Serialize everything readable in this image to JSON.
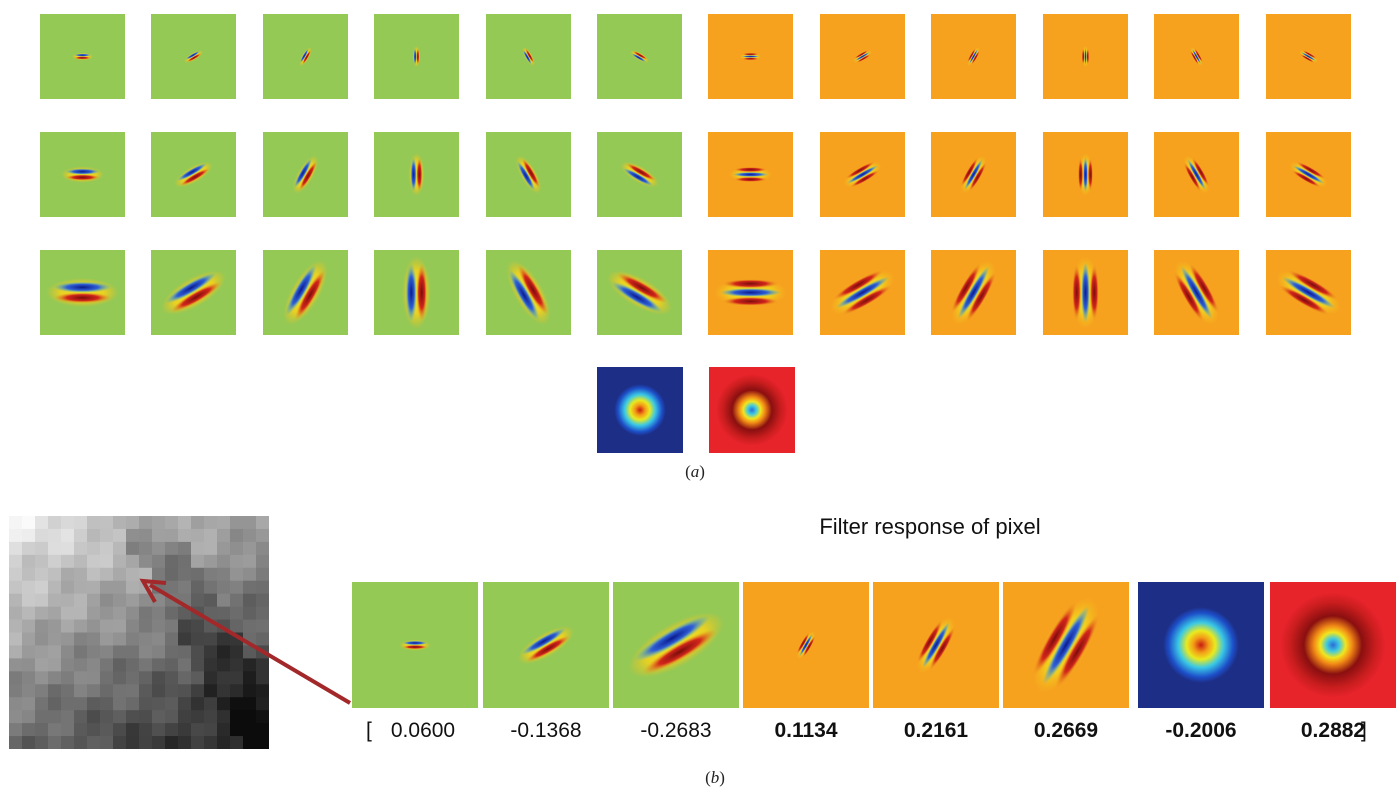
{
  "panel_a": {
    "caption_letter": "a",
    "bank_colors": {
      "edge_bg": "#95c955",
      "bar_bg": "#f6a21f",
      "gaussian_bg": "#1d2e87",
      "log_bg": "#e8242b"
    },
    "orientations_deg": [
      0,
      30,
      60,
      90,
      120,
      150
    ],
    "scales": [
      1,
      2,
      3
    ]
  },
  "panel_b": {
    "caption_letter": "b",
    "title": "Filter response of pixel",
    "open_bracket": "[",
    "close_bracket": "]",
    "responses": [
      {
        "value": "0.0600",
        "bold": false
      },
      {
        "value": "-0.1368",
        "bold": false
      },
      {
        "value": "-0.2683",
        "bold": false
      },
      {
        "value": "0.1134",
        "bold": true
      },
      {
        "value": "0.2161",
        "bold": true
      },
      {
        "value": "0.2669",
        "bold": true
      },
      {
        "value": "-0.2006",
        "bold": true
      },
      {
        "value": "0.2882",
        "bold": true
      }
    ],
    "arrow_color": "#a3282a"
  }
}
